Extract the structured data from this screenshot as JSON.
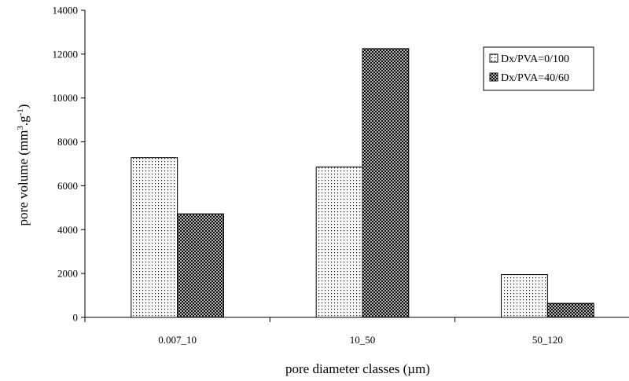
{
  "chart_data": {
    "type": "bar",
    "categories": [
      "0.007_10",
      "10_50",
      "50_120"
    ],
    "series": [
      {
        "name": "Dx/PVA=0/100",
        "values": [
          7280,
          6850,
          1950
        ]
      },
      {
        "name": "Dx/PVA=40/60",
        "values": [
          4720,
          12250,
          640
        ]
      }
    ],
    "ylim": [
      0,
      14000
    ],
    "yticks": [
      0,
      2000,
      4000,
      6000,
      8000,
      10000,
      12000,
      14000
    ],
    "xlabel": "pore diameter classes (µm)",
    "ylabel": {
      "main": "pore volume (mm",
      "sup1": "3",
      "mid": ".g",
      "sup2": "-1",
      "end": ")"
    },
    "legend_position": "top-right",
    "grid": false
  }
}
